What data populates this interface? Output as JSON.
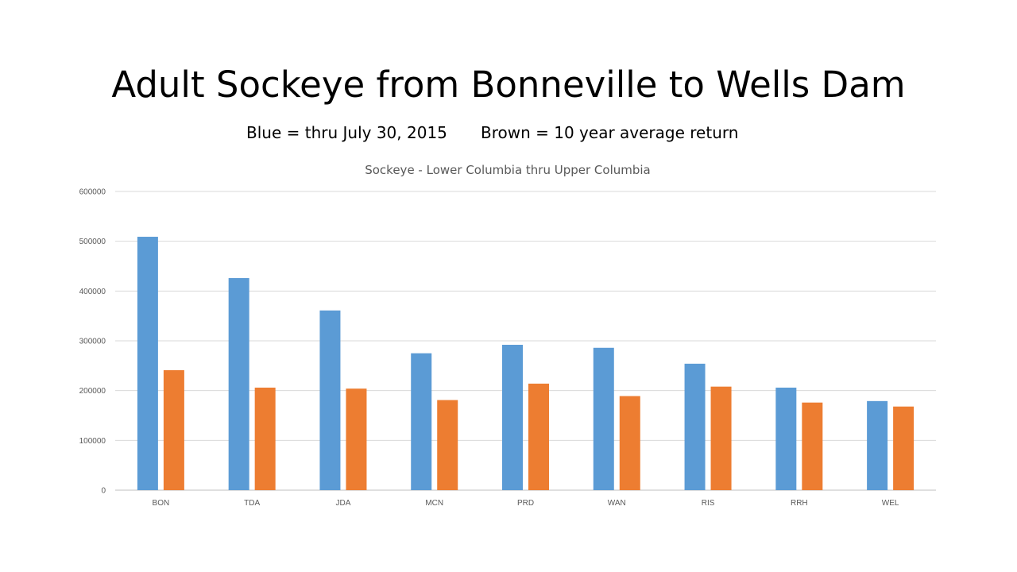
{
  "slide": {
    "title": "Adult Sockeye from Bonneville to Wells Dam",
    "subtitle_left": "Blue = thru July 30, 2015",
    "subtitle_right": "Brown = 10 year average return"
  },
  "chart_data": {
    "type": "bar",
    "title": "Sockeye - Lower Columbia thru Upper Columbia",
    "xlabel": "",
    "ylabel": "",
    "categories": [
      "BON",
      "TDA",
      "JDA",
      "MCN",
      "PRD",
      "WAN",
      "RIS",
      "RRH",
      "WEL"
    ],
    "series": [
      {
        "values": [
          509000,
          426000,
          361000,
          275000,
          292000,
          286000,
          254000,
          206000,
          179000
        ],
        "color": "#5B9BD5"
      },
      {
        "values": [
          241000,
          206000,
          204000,
          181000,
          214000,
          189000,
          208000,
          176000,
          168000
        ],
        "color": "#ED7D31"
      }
    ],
    "ylim": [
      0,
      600000
    ],
    "yticks": [
      0,
      100000,
      200000,
      300000,
      400000,
      500000,
      600000
    ],
    "ytick_labels": [
      "0",
      "100000",
      "200000",
      "300000",
      "400000",
      "500000",
      "600000"
    ],
    "grid": true,
    "legend": "none"
  }
}
